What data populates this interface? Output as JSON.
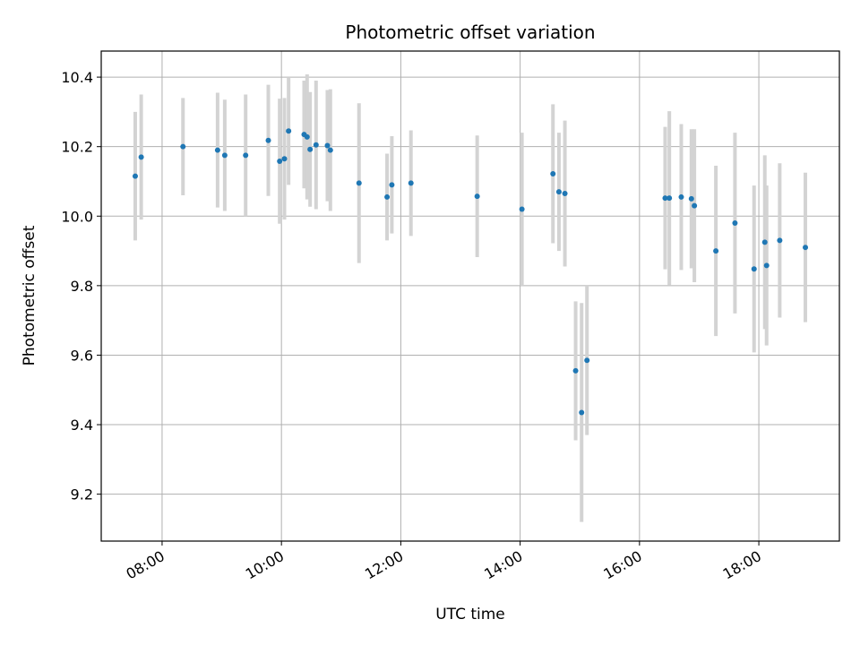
{
  "chart_data": {
    "type": "scatter",
    "title": "Photometric offset variation",
    "xlabel": "UTC time",
    "ylabel": "Photometric offset",
    "x_unit": "UTC time of day (hours)",
    "xlim": [
      6.98,
      19.35
    ],
    "ylim": [
      9.065,
      10.475
    ],
    "x_ticks": [
      {
        "value": 8,
        "label": "08:00"
      },
      {
        "value": 10,
        "label": "10:00"
      },
      {
        "value": 12,
        "label": "12:00"
      },
      {
        "value": 14,
        "label": "14:00"
      },
      {
        "value": 16,
        "label": "16:00"
      },
      {
        "value": 18,
        "label": "18:00"
      }
    ],
    "y_ticks": [
      {
        "value": 9.2,
        "label": "9.2"
      },
      {
        "value": 9.4,
        "label": "9.4"
      },
      {
        "value": 9.6,
        "label": "9.6"
      },
      {
        "value": 9.8,
        "label": "9.8"
      },
      {
        "value": 10.0,
        "label": "10.0"
      },
      {
        "value": 10.2,
        "label": "10.2"
      },
      {
        "value": 10.4,
        "label": "10.4"
      }
    ],
    "grid": true,
    "colors": {
      "points": "#1f77b4",
      "error_bars": "#d3d3d3",
      "grid": "#b0b0b0"
    },
    "points": [
      {
        "x": 7.55,
        "y": 10.115,
        "err": 0.185
      },
      {
        "x": 7.65,
        "y": 10.17,
        "err": 0.18
      },
      {
        "x": 8.35,
        "y": 10.2,
        "err": 0.14
      },
      {
        "x": 8.93,
        "y": 10.19,
        "err": 0.165
      },
      {
        "x": 9.05,
        "y": 10.175,
        "err": 0.16
      },
      {
        "x": 9.4,
        "y": 10.175,
        "err": 0.175
      },
      {
        "x": 9.78,
        "y": 10.218,
        "err": 0.16
      },
      {
        "x": 9.97,
        "y": 10.158,
        "err": 0.18
      },
      {
        "x": 10.05,
        "y": 10.165,
        "err": 0.175
      },
      {
        "x": 10.12,
        "y": 10.245,
        "err": 0.155
      },
      {
        "x": 10.38,
        "y": 10.235,
        "err": 0.155
      },
      {
        "x": 10.43,
        "y": 10.228,
        "err": 0.18
      },
      {
        "x": 10.48,
        "y": 10.192,
        "err": 0.165
      },
      {
        "x": 10.58,
        "y": 10.205,
        "err": 0.185
      },
      {
        "x": 10.77,
        "y": 10.203,
        "err": 0.16
      },
      {
        "x": 10.82,
        "y": 10.19,
        "err": 0.175
      },
      {
        "x": 11.3,
        "y": 10.095,
        "err": 0.23
      },
      {
        "x": 11.77,
        "y": 10.055,
        "err": 0.125
      },
      {
        "x": 11.85,
        "y": 10.09,
        "err": 0.14
      },
      {
        "x": 12.17,
        "y": 10.095,
        "err": 0.152
      },
      {
        "x": 13.28,
        "y": 10.057,
        "err": 0.175
      },
      {
        "x": 14.03,
        "y": 10.02,
        "err": 0.22
      },
      {
        "x": 14.55,
        "y": 10.122,
        "err": 0.2
      },
      {
        "x": 14.65,
        "y": 10.07,
        "err": 0.17
      },
      {
        "x": 14.75,
        "y": 10.065,
        "err": 0.21
      },
      {
        "x": 14.93,
        "y": 9.555,
        "err": 0.2
      },
      {
        "x": 15.03,
        "y": 9.435,
        "err": 0.315
      },
      {
        "x": 15.12,
        "y": 9.585,
        "err": 0.215
      },
      {
        "x": 16.43,
        "y": 10.052,
        "err": 0.205
      },
      {
        "x": 16.5,
        "y": 10.052,
        "err": 0.25
      },
      {
        "x": 16.7,
        "y": 10.055,
        "err": 0.21
      },
      {
        "x": 16.87,
        "y": 10.05,
        "err": 0.2
      },
      {
        "x": 16.92,
        "y": 10.03,
        "err": 0.22
      },
      {
        "x": 17.28,
        "y": 9.9,
        "err": 0.245
      },
      {
        "x": 17.6,
        "y": 9.98,
        "err": 0.26
      },
      {
        "x": 17.92,
        "y": 9.848,
        "err": 0.24
      },
      {
        "x": 18.1,
        "y": 9.925,
        "err": 0.25
      },
      {
        "x": 18.13,
        "y": 9.858,
        "err": 0.23
      },
      {
        "x": 18.35,
        "y": 9.93,
        "err": 0.222
      },
      {
        "x": 18.78,
        "y": 9.91,
        "err": 0.215
      }
    ]
  }
}
